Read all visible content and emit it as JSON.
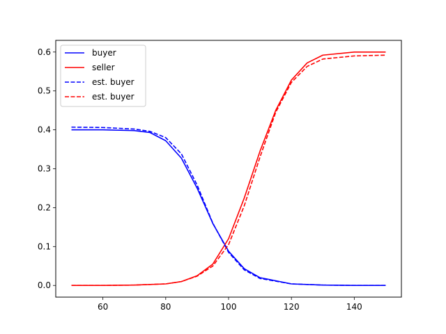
{
  "chart_data": {
    "type": "line",
    "title": "",
    "xlabel": "",
    "ylabel": "",
    "xlim": [
      45.0,
      155.0
    ],
    "ylim": [
      -0.03,
      0.63
    ],
    "xticks": [
      60,
      80,
      100,
      120,
      140
    ],
    "yticks": [
      0.0,
      0.1,
      0.2,
      0.3,
      0.4,
      0.5,
      0.6
    ],
    "ytick_labels": [
      "0.0",
      "0.1",
      "0.2",
      "0.3",
      "0.4",
      "0.5",
      "0.6"
    ],
    "grid": false,
    "legend_position": "top-left",
    "series": [
      {
        "name": "buyer",
        "color": "#0000ff",
        "style": "solid",
        "x": [
          50,
          60,
          70,
          75,
          80,
          85,
          90,
          95,
          100,
          105,
          110,
          120,
          130,
          140,
          150
        ],
        "y": [
          0.4,
          0.4,
          0.398,
          0.393,
          0.372,
          0.327,
          0.25,
          0.159,
          0.088,
          0.043,
          0.02,
          0.004,
          0.001,
          0.0,
          0.0
        ]
      },
      {
        "name": "seller",
        "color": "#ff0000",
        "style": "solid",
        "x": [
          50,
          60,
          70,
          80,
          85,
          90,
          95,
          100,
          105,
          110,
          115,
          120,
          125,
          130,
          140,
          150
        ],
        "y": [
          0.0,
          0.0,
          0.001,
          0.004,
          0.01,
          0.025,
          0.055,
          0.12,
          0.225,
          0.345,
          0.45,
          0.528,
          0.572,
          0.592,
          0.6,
          0.6
        ]
      },
      {
        "name": "est. buyer",
        "color": "#0000ff",
        "style": "dashed",
        "x": [
          50,
          60,
          70,
          75,
          80,
          85,
          90,
          95,
          100,
          105,
          110,
          120,
          130,
          140,
          150
        ],
        "y": [
          0.407,
          0.406,
          0.402,
          0.396,
          0.38,
          0.338,
          0.258,
          0.16,
          0.085,
          0.04,
          0.018,
          0.004,
          0.001,
          0.0,
          0.0
        ]
      },
      {
        "name": "est. buyer",
        "color": "#ff0000",
        "style": "dashed",
        "x": [
          50,
          60,
          70,
          80,
          85,
          90,
          95,
          100,
          105,
          110,
          115,
          120,
          125,
          130,
          140,
          150
        ],
        "y": [
          0.0,
          0.0,
          0.001,
          0.004,
          0.01,
          0.024,
          0.05,
          0.105,
          0.205,
          0.33,
          0.445,
          0.522,
          0.563,
          0.582,
          0.59,
          0.592
        ]
      }
    ]
  }
}
